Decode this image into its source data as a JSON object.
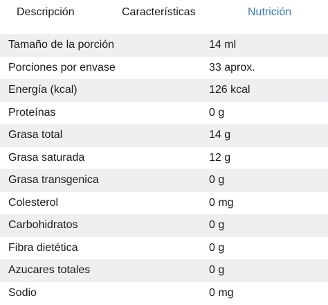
{
  "tabs": [
    {
      "label": "Descripción",
      "active": false
    },
    {
      "label": "Características",
      "active": false
    },
    {
      "label": "Nutrición",
      "active": true
    }
  ],
  "colors": {
    "active_tab": "#3a78b5",
    "inactive_tab": "#1a1a1a",
    "row_stripe": "#efeff2"
  },
  "nutrition": {
    "rows": [
      {
        "label": "Tamaño de la porción",
        "value": "14 ml"
      },
      {
        "label": "Porciones por envase",
        "value": "33 aprox."
      },
      {
        "label": "Energía (kcal)",
        "value": "126 kcal"
      },
      {
        "label": "Proteínas",
        "value": "0 g"
      },
      {
        "label": "Grasa total",
        "value": "14 g"
      },
      {
        "label": "Grasa saturada",
        "value": "12 g"
      },
      {
        "label": "Grasa transgenica",
        "value": "0 g"
      },
      {
        "label": "Colesterol",
        "value": "0 mg"
      },
      {
        "label": "Carbohidratos",
        "value": "0 g"
      },
      {
        "label": "Fibra dietética",
        "value": "0 g"
      },
      {
        "label": "Azucares totales",
        "value": "0 g"
      },
      {
        "label": "Sodio",
        "value": "0 mg"
      }
    ]
  }
}
